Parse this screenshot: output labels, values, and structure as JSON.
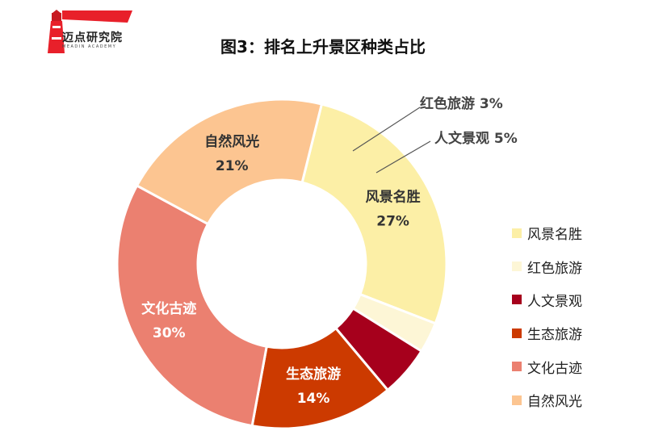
{
  "logo": {
    "name": "迈点研究院",
    "subtitle": "MEADIN ACADEMY",
    "brand_color": "#e8202a"
  },
  "chart_data": {
    "type": "pie",
    "title": "图3：排名上升景区种类占比",
    "donut": true,
    "categories": [
      "风景名胜",
      "红色旅游",
      "人文景观",
      "生态旅游",
      "文化古迹",
      "自然风光"
    ],
    "values": [
      27,
      3,
      5,
      14,
      30,
      21
    ],
    "value_labels": [
      "27%",
      "3%",
      "5%",
      "14%",
      "30%",
      "21%"
    ],
    "colors": [
      "#fcefa6",
      "#fdf6d6",
      "#a6001c",
      "#cc3a00",
      "#eb8070",
      "#fcc591"
    ],
    "legend_position": "right",
    "start_angle_deg": 14,
    "direction": "clockwise"
  }
}
